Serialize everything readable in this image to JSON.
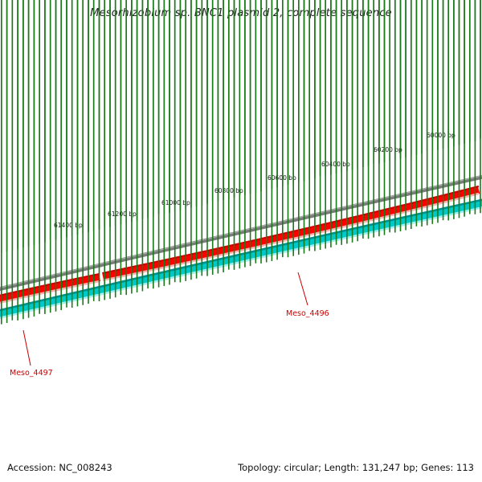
{
  "title": "Mesorhizobium sp. BNC1 plasmid 2, complete sequence",
  "ruler": {
    "labels": [
      "60000 bp",
      "60200 bp",
      "60400 bp",
      "60600 bp",
      "60800 bp",
      "61000 bp",
      "61200 bp",
      "61400 bp"
    ]
  },
  "genes": [
    {
      "name": "Meso_4496",
      "strand": "forward",
      "color": "#ff0000"
    },
    {
      "name": "Meso_4497",
      "strand": "forward",
      "color": "#ff0000"
    }
  ],
  "tracks": {
    "backbone_color": "#808080",
    "forward_genes_color": "#ff0000",
    "reverse_track_color": "#00cccc",
    "tick_color": "#1a7a1a"
  },
  "footer": {
    "accession": "Accession: NC_008243",
    "summary": "Topology: circular; Length: 131,247 bp; Genes: 113"
  }
}
